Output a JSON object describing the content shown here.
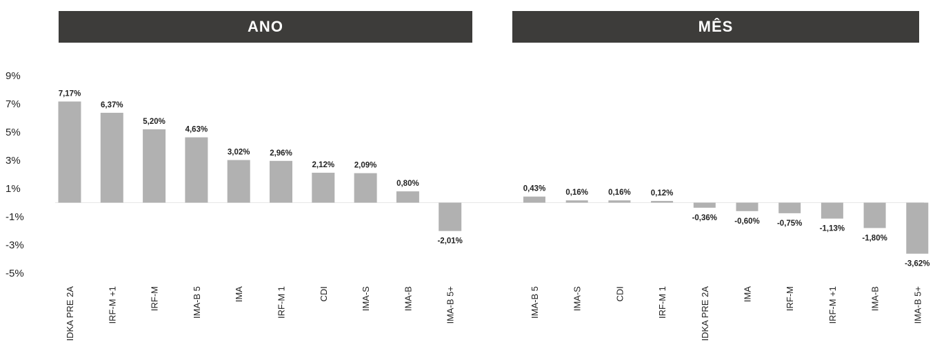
{
  "chart_data": [
    {
      "type": "bar",
      "title": "ANO",
      "y_tick_labels": [
        "9%",
        "7%",
        "5%",
        "3%",
        "1%",
        "-1%",
        "-3%",
        "-5%"
      ],
      "ylim": [
        -5,
        9
      ],
      "categories": [
        "IDKA PRE 2A",
        "IRF-M +1",
        "IRF-M",
        "IMA-B 5",
        "IMA",
        "IRF-M 1",
        "CDI",
        "IMA-S",
        "IMA-B",
        "IMA-B 5+"
      ],
      "values": [
        7.17,
        6.37,
        5.2,
        4.63,
        3.02,
        2.96,
        2.12,
        2.09,
        0.8,
        -2.01
      ],
      "value_labels": [
        "7,17%",
        "6,37%",
        "5,20%",
        "4,63%",
        "3,02%",
        "2,96%",
        "2,12%",
        "2,09%",
        "0,80%",
        "-2,01%"
      ],
      "bar_color": "#b1b1b1",
      "grid": false
    },
    {
      "type": "bar",
      "title": "MÊS",
      "ylim": [
        -5,
        9
      ],
      "categories": [
        "IMA-B 5",
        "IMA-S",
        "CDI",
        "IRF-M 1",
        "IDKA PRE 2A",
        "IMA",
        "IRF-M",
        "IRF-M +1",
        "IMA-B",
        "IMA-B 5+"
      ],
      "values": [
        0.43,
        0.16,
        0.16,
        0.12,
        -0.36,
        -0.6,
        -0.75,
        -1.13,
        -1.8,
        -3.62
      ],
      "value_labels": [
        "0,43%",
        "0,16%",
        "0,16%",
        "0,12%",
        "-0,36%",
        "-0,60%",
        "-0,75%",
        "-1,13%",
        "-1,80%",
        "-3,62%"
      ],
      "bar_color": "#b1b1b1",
      "grid": false
    }
  ],
  "colors": {
    "banner_bg": "#3d3c3a",
    "banner_text": "#ffffff",
    "bar": "#b1b1b1",
    "text": "#222222"
  }
}
